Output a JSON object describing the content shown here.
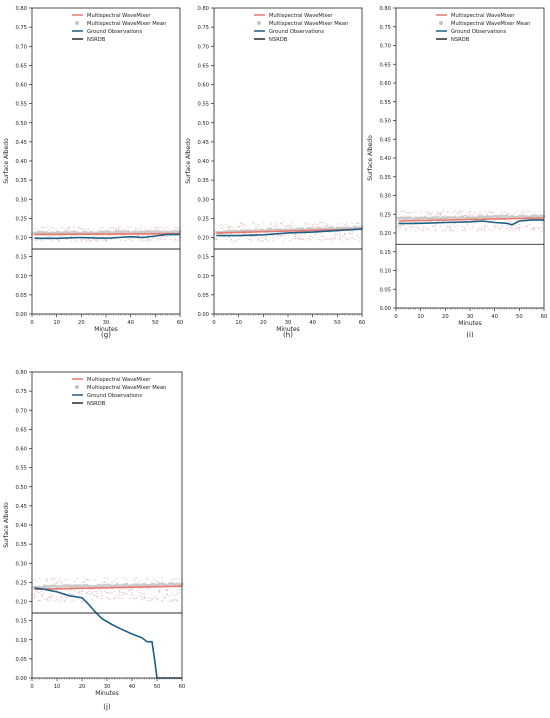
{
  "legend": {
    "items": [
      {
        "label": "Multispectral WaveMixer",
        "color": "#e8776c",
        "kind": "line"
      },
      {
        "label": "Multispectral WaveMixer Mean",
        "color": "#c4c4c4",
        "kind": "marker"
      },
      {
        "label": "Ground Observations",
        "color": "#1f5f86",
        "kind": "line"
      },
      {
        "label": "NSRDB",
        "color": "#2b2b2b",
        "kind": "line"
      }
    ]
  },
  "colors": {
    "ensemble": "#d9a4ab",
    "mean_marker": "#c4c4c4",
    "wavemixer": "#e8776c",
    "ground": "#1f5f86",
    "nsrdb": "#2b2b2b"
  },
  "chart_data": [
    {
      "type": "line",
      "panel_label": "(g)",
      "xlabel": "Minutes",
      "ylabel": "Surface Albedo",
      "xlim": [
        0,
        60
      ],
      "ylim": [
        0,
        0.8
      ],
      "xticks": [
        "0",
        "10",
        "20",
        "30",
        "40",
        "50",
        "60"
      ],
      "yticks": [
        "0.00",
        "0.05",
        "0.10",
        "0.15",
        "0.20",
        "0.25",
        "0.30",
        "0.35",
        "0.40",
        "0.45",
        "0.50",
        "0.55",
        "0.60",
        "0.65",
        "0.70",
        "0.75",
        "0.80"
      ],
      "grid": false,
      "legend_position": "top-right",
      "series": [
        {
          "name": "Multispectral WaveMixer",
          "x": [
            1,
            60
          ],
          "y": [
            0.208,
            0.21
          ]
        },
        {
          "name": "Ground Observations",
          "x": [
            1,
            10,
            20,
            30,
            40,
            45,
            50,
            55,
            60
          ],
          "y": [
            0.198,
            0.198,
            0.2,
            0.198,
            0.202,
            0.2,
            0.204,
            0.208,
            0.208
          ]
        },
        {
          "name": "NSRDB",
          "x": [
            0,
            60
          ],
          "y": [
            0.17,
            0.17
          ]
        }
      ],
      "ensemble_range": [
        0.19,
        0.228
      ],
      "mean_level": [
        0.212,
        0.215
      ]
    },
    {
      "type": "line",
      "panel_label": "(h)",
      "xlabel": "Minutes",
      "ylabel": "Surface Albedo",
      "xlim": [
        0,
        60
      ],
      "ylim": [
        0,
        0.8
      ],
      "xticks": [
        "0",
        "10",
        "20",
        "30",
        "40",
        "50",
        "60"
      ],
      "yticks": [
        "0.00",
        "0.05",
        "0.10",
        "0.15",
        "0.20",
        "0.25",
        "0.30",
        "0.35",
        "0.40",
        "0.45",
        "0.50",
        "0.55",
        "0.60",
        "0.65",
        "0.70",
        "0.75",
        "0.80"
      ],
      "grid": false,
      "legend_position": "top-right",
      "series": [
        {
          "name": "Multispectral WaveMixer",
          "x": [
            1,
            60
          ],
          "y": [
            0.212,
            0.222
          ]
        },
        {
          "name": "Ground Observations",
          "x": [
            1,
            10,
            20,
            30,
            40,
            50,
            60
          ],
          "y": [
            0.205,
            0.205,
            0.207,
            0.212,
            0.214,
            0.218,
            0.222
          ]
        },
        {
          "name": "NSRDB",
          "x": [
            0,
            60
          ],
          "y": [
            0.17,
            0.17
          ]
        }
      ],
      "ensemble_range": [
        0.19,
        0.24
      ],
      "mean_level": [
        0.214,
        0.226
      ]
    },
    {
      "type": "line",
      "panel_label": "(i)",
      "xlabel": "Minutes",
      "ylabel": "Surface Albedo",
      "xlim": [
        0,
        60
      ],
      "ylim": [
        0,
        0.8
      ],
      "xticks": [
        "0",
        "10",
        "20",
        "30",
        "40",
        "50",
        "60"
      ],
      "yticks": [
        "0.00",
        "0.05",
        "0.10",
        "0.15",
        "0.20",
        "0.25",
        "0.30",
        "0.35",
        "0.40",
        "0.45",
        "0.50",
        "0.55",
        "0.60",
        "0.65",
        "0.70",
        "0.75",
        "0.80"
      ],
      "grid": false,
      "legend_position": "top-right",
      "series": [
        {
          "name": "Multispectral WaveMixer",
          "x": [
            1,
            60
          ],
          "y": [
            0.232,
            0.24
          ]
        },
        {
          "name": "Ground Observations",
          "x": [
            1,
            10,
            20,
            30,
            35,
            40,
            45,
            47,
            50,
            55,
            60
          ],
          "y": [
            0.225,
            0.226,
            0.228,
            0.23,
            0.232,
            0.228,
            0.226,
            0.222,
            0.232,
            0.235,
            0.235
          ]
        },
        {
          "name": "NSRDB",
          "x": [
            0,
            60
          ],
          "y": [
            0.17,
            0.17
          ]
        }
      ],
      "ensemble_range": [
        0.205,
        0.26
      ],
      "mean_level": [
        0.238,
        0.245
      ]
    },
    {
      "type": "line",
      "panel_label": "(j)",
      "xlabel": "Minutes",
      "ylabel": "Surface Albedo",
      "xlim": [
        0,
        60
      ],
      "ylim": [
        0,
        0.8
      ],
      "xticks": [
        "0",
        "10",
        "20",
        "30",
        "40",
        "50",
        "60"
      ],
      "yticks": [
        "0.00",
        "0.05",
        "0.10",
        "0.15",
        "0.20",
        "0.25",
        "0.30",
        "0.35",
        "0.40",
        "0.45",
        "0.50",
        "0.55",
        "0.60",
        "0.65",
        "0.70",
        "0.75",
        "0.80"
      ],
      "grid": false,
      "legend_position": "top-right",
      "series": [
        {
          "name": "Multispectral WaveMixer",
          "x": [
            1,
            60
          ],
          "y": [
            0.232,
            0.24
          ]
        },
        {
          "name": "Ground Observations",
          "x": [
            1,
            5,
            10,
            15,
            20,
            23,
            25,
            28,
            32,
            35,
            40,
            44,
            46,
            48,
            49,
            50,
            55,
            60
          ],
          "y": [
            0.235,
            0.232,
            0.225,
            0.215,
            0.21,
            0.19,
            0.175,
            0.155,
            0.14,
            0.13,
            0.115,
            0.105,
            0.095,
            0.095,
            0.05,
            0.0,
            0.0,
            0.0
          ]
        },
        {
          "name": "NSRDB",
          "x": [
            0,
            60
          ],
          "y": [
            0.17,
            0.17
          ]
        }
      ],
      "ensemble_range": [
        0.2,
        0.262
      ],
      "mean_level": [
        0.238,
        0.245
      ]
    }
  ]
}
